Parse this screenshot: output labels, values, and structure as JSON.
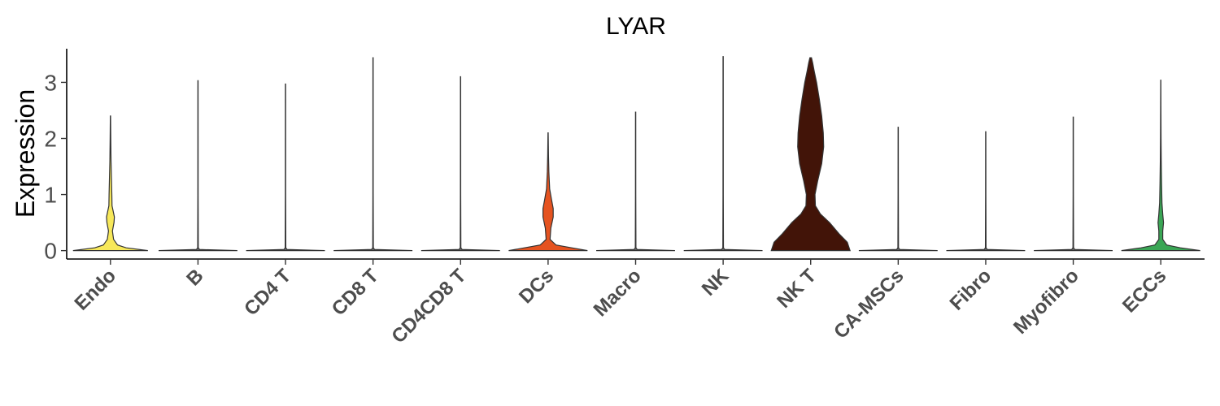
{
  "chart_data": {
    "type": "violin",
    "title": "LYAR",
    "xlabel": "",
    "ylabel": "Expression",
    "ylim": [
      -0.15,
      3.6
    ],
    "yticks": [
      0,
      1,
      2,
      3
    ],
    "grid": false,
    "legend": "none",
    "categories": [
      "Endo",
      "B",
      "CD4 T",
      "CD8 T",
      "CD4CD8 T",
      "DCs",
      "Macro",
      "NK",
      "NK T",
      "CA-MSCs",
      "Fibro",
      "Myofibro",
      "ECCs"
    ],
    "series": [
      {
        "category": "Endo",
        "max": 2.4,
        "color": "#f7e85a",
        "profile": [
          [
            0,
            0.95
          ],
          [
            0.05,
            0.4
          ],
          [
            0.1,
            0.18
          ],
          [
            0.2,
            0.08
          ],
          [
            0.35,
            0.05
          ],
          [
            0.5,
            0.09
          ],
          [
            0.6,
            0.1
          ],
          [
            0.7,
            0.07
          ],
          [
            0.8,
            0.04
          ],
          [
            1.0,
            0.035
          ],
          [
            1.3,
            0.025
          ],
          [
            1.6,
            0.015
          ],
          [
            2.0,
            0.008
          ],
          [
            2.4,
            0.003
          ]
        ]
      },
      {
        "category": "B",
        "max": 3.03,
        "color": "#666666",
        "profile": [
          [
            0,
            1.0
          ],
          [
            0.02,
            0.04
          ],
          [
            0.05,
            0.008
          ],
          [
            1.0,
            0.004
          ],
          [
            3.03,
            0.003
          ]
        ]
      },
      {
        "category": "CD4 T",
        "max": 2.97,
        "color": "#666666",
        "profile": [
          [
            0,
            1.0
          ],
          [
            0.02,
            0.04
          ],
          [
            0.05,
            0.008
          ],
          [
            1.0,
            0.004
          ],
          [
            2.97,
            0.003
          ]
        ]
      },
      {
        "category": "CD8 T",
        "max": 3.44,
        "color": "#666666",
        "profile": [
          [
            0,
            1.0
          ],
          [
            0.02,
            0.04
          ],
          [
            0.05,
            0.008
          ],
          [
            1.0,
            0.004
          ],
          [
            3.44,
            0.003
          ]
        ]
      },
      {
        "category": "CD4CD8 T",
        "max": 3.1,
        "color": "#666666",
        "profile": [
          [
            0,
            1.0
          ],
          [
            0.02,
            0.04
          ],
          [
            0.05,
            0.008
          ],
          [
            1.0,
            0.004
          ],
          [
            3.1,
            0.003
          ]
        ]
      },
      {
        "category": "DCs",
        "max": 2.1,
        "color": "#e55320",
        "profile": [
          [
            0,
            1.0
          ],
          [
            0.05,
            0.6
          ],
          [
            0.1,
            0.2
          ],
          [
            0.2,
            0.05
          ],
          [
            0.4,
            0.07
          ],
          [
            0.6,
            0.13
          ],
          [
            0.75,
            0.13
          ],
          [
            0.9,
            0.09
          ],
          [
            1.1,
            0.04
          ],
          [
            1.4,
            0.02
          ],
          [
            1.7,
            0.01
          ],
          [
            2.1,
            0.003
          ]
        ]
      },
      {
        "category": "Macro",
        "max": 2.47,
        "color": "#666666",
        "profile": [
          [
            0,
            1.0
          ],
          [
            0.02,
            0.04
          ],
          [
            0.05,
            0.008
          ],
          [
            1.0,
            0.004
          ],
          [
            2.47,
            0.003
          ]
        ]
      },
      {
        "category": "NK",
        "max": 3.46,
        "color": "#666666",
        "profile": [
          [
            0,
            1.0
          ],
          [
            0.02,
            0.04
          ],
          [
            0.05,
            0.008
          ],
          [
            1.0,
            0.004
          ],
          [
            3.46,
            0.003
          ]
        ]
      },
      {
        "category": "NK T",
        "max": 3.44,
        "color": "#421408",
        "profile": [
          [
            0,
            1.0
          ],
          [
            0.15,
            0.93
          ],
          [
            0.3,
            0.72
          ],
          [
            0.5,
            0.48
          ],
          [
            0.65,
            0.25
          ],
          [
            0.8,
            0.12
          ],
          [
            1.0,
            0.11
          ],
          [
            1.25,
            0.18
          ],
          [
            1.55,
            0.28
          ],
          [
            1.85,
            0.33
          ],
          [
            2.1,
            0.32
          ],
          [
            2.4,
            0.28
          ],
          [
            2.7,
            0.22
          ],
          [
            3.0,
            0.15
          ],
          [
            3.2,
            0.09
          ],
          [
            3.35,
            0.05
          ],
          [
            3.44,
            0.02
          ]
        ]
      },
      {
        "category": "CA-MSCs",
        "max": 2.2,
        "color": "#666666",
        "profile": [
          [
            0,
            1.0
          ],
          [
            0.02,
            0.04
          ],
          [
            0.05,
            0.008
          ],
          [
            1.0,
            0.004
          ],
          [
            2.2,
            0.003
          ]
        ]
      },
      {
        "category": "Fibro",
        "max": 2.12,
        "color": "#666666",
        "profile": [
          [
            0,
            1.0
          ],
          [
            0.02,
            0.04
          ],
          [
            0.05,
            0.008
          ],
          [
            1.0,
            0.004
          ],
          [
            2.12,
            0.003
          ]
        ]
      },
      {
        "category": "Myofibro",
        "max": 2.38,
        "color": "#666666",
        "profile": [
          [
            0,
            1.0
          ],
          [
            0.02,
            0.04
          ],
          [
            0.05,
            0.008
          ],
          [
            1.0,
            0.004
          ],
          [
            2.38,
            0.003
          ]
        ]
      },
      {
        "category": "ECCs",
        "max": 3.04,
        "color": "#3aa655",
        "profile": [
          [
            0,
            1.0
          ],
          [
            0.05,
            0.5
          ],
          [
            0.1,
            0.15
          ],
          [
            0.2,
            0.05
          ],
          [
            0.35,
            0.05
          ],
          [
            0.5,
            0.07
          ],
          [
            0.65,
            0.05
          ],
          [
            0.85,
            0.03
          ],
          [
            1.2,
            0.02
          ],
          [
            1.6,
            0.012
          ],
          [
            2.0,
            0.007
          ],
          [
            2.5,
            0.004
          ],
          [
            3.04,
            0.002
          ]
        ]
      }
    ]
  }
}
